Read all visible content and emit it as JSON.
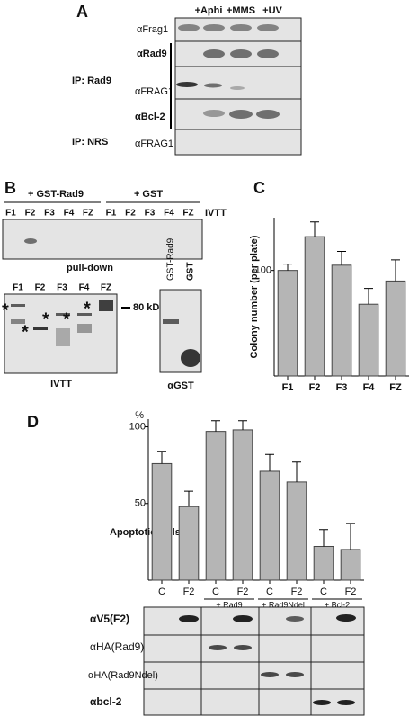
{
  "panel_a": {
    "letter": "A",
    "treatments": [
      "+Aphi",
      "+MMS",
      "+UV"
    ],
    "rows": [
      "αFrag1",
      "αRad9",
      "αFRAG1",
      "αBcl-2",
      "αFRAG1"
    ],
    "ip_labels": [
      "IP: Rad9",
      "IP: NRS"
    ]
  },
  "panel_b": {
    "letter": "B",
    "groups": [
      "+ GST-Rad9",
      "+ GST"
    ],
    "group_tag": "IVTT",
    "lanes": [
      "F1",
      "F2",
      "F3",
      "F4",
      "FZ",
      "F1",
      "F2",
      "F3",
      "F4",
      "FZ"
    ],
    "pulldown_label": "pull-down",
    "ivtt_lanes": [
      "F1",
      "F2",
      "F3",
      "F4",
      "FZ"
    ],
    "marker": "80 kDa",
    "ivtt_label": "IVTT",
    "gst_lanes": [
      "GST-Rad9",
      "GST"
    ],
    "gst_label": "αGST"
  },
  "panel_d_blots": {
    "rows": [
      "αV5(F2)",
      "αHA(Rad9)",
      "αHA(Rad9Ndel)",
      "αbcl-2"
    ]
  },
  "chart_data": [
    {
      "type": "bar",
      "letter": "C",
      "y_label": "Colony number (per plate)",
      "categories": [
        "F1",
        "F2",
        "F3",
        "F4",
        "FZ"
      ],
      "values": [
        100,
        132,
        105,
        68,
        90
      ],
      "errors": [
        6,
        14,
        13,
        15,
        20
      ],
      "color": "#b5b5b5",
      "ylim": [
        0,
        150
      ],
      "yticks": [
        100
      ]
    },
    {
      "type": "bar",
      "letter": "D",
      "y_label": "Apoptotic cells",
      "y_unit": "%",
      "categories": [
        "C",
        "F2",
        "C",
        "F2",
        "C",
        "F2",
        "C",
        "F2"
      ],
      "values": [
        76,
        48,
        97,
        98,
        71,
        64,
        22,
        20
      ],
      "errors": [
        8,
        10,
        7,
        6,
        11,
        13,
        11,
        17
      ],
      "group_labels": [
        "+ Rad9",
        "+ Rad9Ndel",
        "+ Bcl-2"
      ],
      "color": "#b5b5b5",
      "ylim": [
        0,
        105
      ],
      "yticks": [
        50,
        100
      ]
    }
  ]
}
